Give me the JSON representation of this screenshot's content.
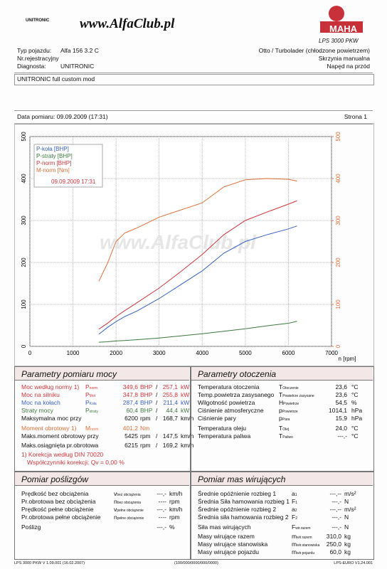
{
  "header": {
    "brand": "UNITRONIC",
    "site": "www.AlfaClub.pl",
    "maha": "MAHA",
    "model": "LPS 3000 PKW"
  },
  "vehicle": {
    "type_label": "Typ pojazdu:",
    "type": "Alfa 156 3.2 C",
    "reg_label": "Nr.rejestracyjny",
    "diag_label": "Diagnosta:",
    "diag": "UNITRONIC",
    "engine": "Otto / Turbolader (chłodzone powietrzem)",
    "gearbox": "Skrzynia manualna",
    "drive": "Napęd na przód",
    "note": "UNITRONIC full custom mod"
  },
  "measurement": {
    "date": "Data pomiaru: 09.09.2009 (17:31)",
    "page": "Strona 1"
  },
  "chart_data": {
    "type": "line",
    "watermark": "www.AlfaClub.pl",
    "legend_date": "09.09.2009 17:31",
    "x_label": "n [rpm]",
    "x": [
      1600,
      1800,
      2000,
      2200,
      2500,
      3000,
      3500,
      4000,
      4500,
      5000,
      5500,
      6000,
      6200
    ],
    "series": [
      {
        "name": "P-koła [BHP]",
        "color": "#3a63c4",
        "values": [
          29,
          45,
          59,
          71,
          85,
          114,
          147,
          180,
          222,
          250,
          266,
          280,
          287
        ]
      },
      {
        "name": "P-straty [BHP]",
        "color": "#3d7a3d",
        "values": [
          10,
          11,
          13,
          14,
          16,
          20,
          25,
          30,
          36,
          42,
          49,
          55,
          60
        ]
      },
      {
        "name": "P-norm [BHP]",
        "color": "#d0353a",
        "values": [
          41,
          55,
          71,
          85,
          105,
          139,
          178,
          219,
          266,
          300,
          320,
          339,
          347
        ]
      },
      {
        "name": "M-norm [Nm]",
        "color": "#e0703a",
        "axis": "y2",
        "values": [
          155,
          198,
          250,
          270,
          283,
          308,
          325,
          342,
          380,
          397,
          400,
          398,
          394
        ]
      }
    ],
    "xlim": [
      0,
      7000
    ],
    "xticks": [
      0,
      1000,
      2000,
      3000,
      4000,
      5000,
      6000,
      7000
    ],
    "ylim": [
      0,
      500
    ],
    "yticks": [
      0,
      100,
      200,
      300,
      400,
      500
    ],
    "y2lim": [
      0,
      500
    ],
    "y2ticks": [
      0,
      100,
      200,
      300,
      400,
      500
    ],
    "grid": true
  },
  "power": {
    "title": "Parametry pomiaru mocy",
    "rows": [
      {
        "label": "Moc według normy 1)",
        "sym": "P",
        "sub": "norm",
        "v1": "349,6",
        "u1": "BHP",
        "sep": "/",
        "v2": "257,1",
        "u2": "kW",
        "color": "#d0353a"
      },
      {
        "label": "Moc na silniku",
        "sym": "P",
        "sub": "Mot",
        "v1": "347,8",
        "u1": "BHP",
        "sep": "/",
        "v2": "255,8",
        "u2": "kW",
        "color": "#d0353a"
      },
      {
        "label": "Moc na kołach",
        "sym": "P",
        "sub": "Koła",
        "v1": "287,4",
        "u1": "BHP",
        "sep": "/",
        "v2": "211,4",
        "u2": "kW",
        "color": "#3a63c4"
      },
      {
        "label": "Straty mocy",
        "sym": "P",
        "sub": "straty",
        "v1": "60,4",
        "u1": "BHP",
        "sep": "/",
        "v2": "44,4",
        "u2": "kW",
        "color": "#3d7a3d"
      },
      {
        "label": "Maksymalna moc przy",
        "v1": "6200",
        "u1": "rpm",
        "sep": "/",
        "v2": "168,7",
        "u2": "km/h",
        "color": "#111"
      },
      {
        "label": "Moment obrotowy 1)",
        "sym": "M",
        "sub": "norm",
        "v1": "401,2",
        "u1": "Nm",
        "color": "#e0703a"
      },
      {
        "label": "Maks.moment obrotowy przy",
        "v1": "5425",
        "u1": "rpm",
        "sep": "/",
        "v2": "147,5",
        "u2": "km/h",
        "color": "#111"
      },
      {
        "label": "Maks.osiągnięta pr.obrotowa",
        "v1": "6215",
        "u1": "rpm",
        "sep": "/",
        "v2": "169,2",
        "u2": "km/h",
        "color": "#111"
      }
    ],
    "notes": [
      "1) Korekcja według DIN 70020",
      "Współczynniki korekcji: Qv = 0,00 %"
    ]
  },
  "environment": {
    "title": "Parametry otoczenia",
    "rows": [
      {
        "label": "Temperatura otoczenia",
        "sym": "T",
        "sub": "Otoczenie",
        "v1": "23,6",
        "u1": "°C"
      },
      {
        "label": "Temp.powietrza zasysanego",
        "sym": "T",
        "sub": "Powietrze zasysane",
        "v1": "23,6",
        "u1": "°C"
      },
      {
        "label": "Wilgotność powietrza",
        "sym": "H",
        "sub": "Powietrze",
        "v1": "54,5",
        "u1": "%"
      },
      {
        "label": "Ciśnienie atmosferyczne",
        "sym": "p",
        "sub": "Powietrze",
        "v1": "1014,1",
        "u1": "hPa"
      },
      {
        "label": "Ciśnienie pary",
        "sym": "p",
        "sub": "Para",
        "v1": "15,9",
        "u1": "hPa"
      },
      {
        "label": "Temperatura oleju",
        "sym": "T",
        "sub": "Olej",
        "v1": "24,0",
        "u1": "°C"
      },
      {
        "label": "Temperatura paliwa",
        "sym": "T",
        "sub": "Paliwo",
        "v1": "---,-",
        "u1": "°C"
      }
    ]
  },
  "slip": {
    "title": "Pomiar poślizgów",
    "rows": [
      {
        "label": "Prędkość bez obciążenia",
        "sym": "v",
        "sub": "bez obciążenia",
        "v1": "---,-",
        "u1": "km/h"
      },
      {
        "label": "Pr.obrotowa bez obciążenia",
        "sym": "n",
        "sub": "bez obciążenia",
        "v1": "----",
        "u1": "rpm"
      },
      {
        "label": "Prędkość pełne obciążenie",
        "sym": "v",
        "sub": "pełne obciążenie",
        "v1": "---,-",
        "u1": "km/h"
      },
      {
        "label": "Pr.obrotowa pełne obciążenie",
        "sym": "n",
        "sub": "pełne obciążenie",
        "v1": "----",
        "u1": "rpm"
      },
      {
        "label": "Poślizg",
        "v1": "---,-",
        "u1": "%"
      }
    ]
  },
  "masses": {
    "title": "Pomiar mas wirujących",
    "rows": [
      {
        "label": "Średnie opóźnienie rozbieg 1",
        "sym": "a",
        "sub": "1",
        "v1": "---,--",
        "u1": "m/s²"
      },
      {
        "label": "Średnia Siła hamowania rozbieg 1",
        "sym": "F",
        "sub": "1",
        "v1": "---,-",
        "u1": "N"
      },
      {
        "label": "Średnie opóźnienie rozbieg 2",
        "sym": "a",
        "sub": "2",
        "v1": "---,--",
        "u1": "m/s²"
      },
      {
        "label": "Średnia siła hamowania rozbieg 2",
        "sym": "F",
        "sub": "2",
        "v1": "---,-",
        "u1": "N"
      },
      {
        "label": "Siła mas wirujących",
        "sym": "F",
        "sub": "wir.razem",
        "v1": "---,-",
        "u1": "N"
      },
      {
        "label": "Masy wirujące razem",
        "sym": "m",
        "sub": "wir.razem",
        "v1": "310,0",
        "u1": "kg"
      },
      {
        "label": "Masy wirujące stanowiska",
        "sym": "m",
        "sub": "wir.stanowiska",
        "v1": "250,0",
        "u1": "kg"
      },
      {
        "label": "Masy wirujące pojazdu",
        "sym": "m",
        "sub": "wir.pojazdu",
        "v1": "60,0",
        "u1": "kg"
      }
    ]
  },
  "footer": {
    "left": "LPS 3000 PKW V 1.09.001 (16.02.2007)",
    "center": "(100/000/0000/000/0000)",
    "right": "LPS-EURO V1.24.001"
  }
}
